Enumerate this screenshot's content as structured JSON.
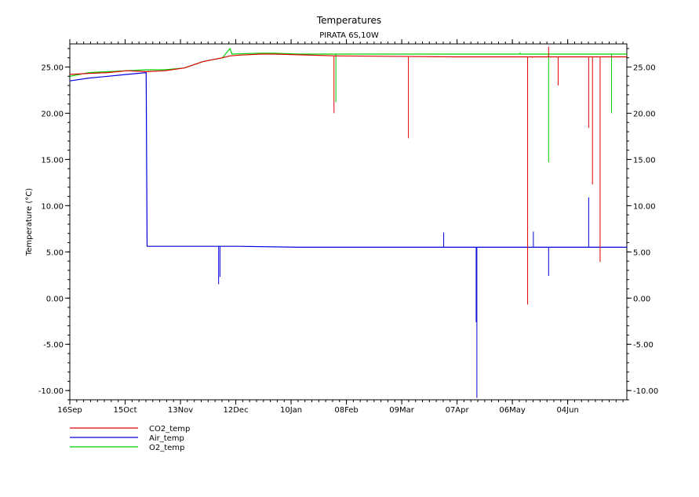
{
  "chart_data": {
    "type": "line",
    "title": "Temperatures",
    "subtitle": "PIRATA 6S,10W",
    "ylabel": "Temperature (°C)",
    "xlabel": "",
    "x_ticks": [
      "16Sep",
      "15Oct",
      "13Nov",
      "12Dec",
      "10Jan",
      "08Feb",
      "09Mar",
      "07Apr",
      "06May",
      "04Jun"
    ],
    "x_range_days": [
      0,
      292
    ],
    "ylim": [
      -11,
      27.5
    ],
    "y_ticks": [
      -10,
      -5,
      0,
      5,
      10,
      15,
      20,
      25
    ],
    "y_tick_labels": [
      "-10.00",
      "-5.00",
      "0.00",
      "5.00",
      "10.00",
      "15.00",
      "20.00",
      "25.00"
    ],
    "grid": false,
    "legend_position": "bottom-left",
    "series": [
      {
        "name": "CO2_temp",
        "color": "#e00000",
        "points": [
          [
            0,
            24.2
          ],
          [
            10,
            24.3
          ],
          [
            20,
            24.4
          ],
          [
            30,
            24.6
          ],
          [
            40,
            24.5
          ],
          [
            50,
            24.6
          ],
          [
            60,
            24.9
          ],
          [
            70,
            25.6
          ],
          [
            80,
            26.0
          ],
          [
            84,
            26.2
          ],
          [
            90,
            26.3
          ],
          [
            100,
            26.4
          ],
          [
            107,
            26.4
          ],
          [
            140,
            26.2
          ],
          [
            200,
            26.1
          ],
          [
            240,
            26.1
          ],
          [
            292,
            26.1
          ]
        ],
        "spikes": [
          [
            138.5,
            20.0
          ],
          [
            177.5,
            17.3
          ],
          [
            240,
            -0.7
          ],
          [
            242.5,
            26.0
          ],
          [
            251,
            27.2
          ],
          [
            256,
            23.0
          ],
          [
            272,
            18.4
          ],
          [
            274,
            12.3
          ],
          [
            278,
            3.9
          ]
        ]
      },
      {
        "name": "Air_temp",
        "color": "#0000e0",
        "points": [
          [
            0,
            23.5
          ],
          [
            10,
            23.8
          ],
          [
            20,
            24.0
          ],
          [
            30,
            24.2
          ],
          [
            40,
            24.4
          ],
          [
            40.5,
            5.6
          ],
          [
            60,
            5.6
          ],
          [
            88,
            5.6
          ],
          [
            120,
            5.5
          ],
          [
            292,
            5.5
          ]
        ],
        "spikes": [
          [
            78,
            1.5
          ],
          [
            78.7,
            2.3
          ],
          [
            196,
            7.1
          ],
          [
            213,
            -2.6
          ],
          [
            213.4,
            -10.8
          ],
          [
            243,
            7.2
          ],
          [
            251,
            2.4
          ],
          [
            272,
            10.9
          ]
        ]
      },
      {
        "name": "O2_temp",
        "color": "#00d000",
        "points": [
          [
            0,
            24.0
          ],
          [
            10,
            24.4
          ],
          [
            20,
            24.5
          ],
          [
            30,
            24.6
          ],
          [
            40,
            24.7
          ],
          [
            50,
            24.7
          ],
          [
            60,
            24.9
          ],
          [
            70,
            25.6
          ],
          [
            80,
            26.0
          ],
          [
            84,
            27.0
          ],
          [
            85,
            26.4
          ],
          [
            100,
            26.5
          ],
          [
            107,
            26.5
          ],
          [
            120,
            26.4
          ],
          [
            292,
            26.4
          ]
        ],
        "spikes": [
          [
            139.5,
            21.2
          ],
          [
            251,
            14.7
          ],
          [
            284,
            20.0
          ],
          [
            236,
            26.6
          ]
        ]
      }
    ]
  }
}
